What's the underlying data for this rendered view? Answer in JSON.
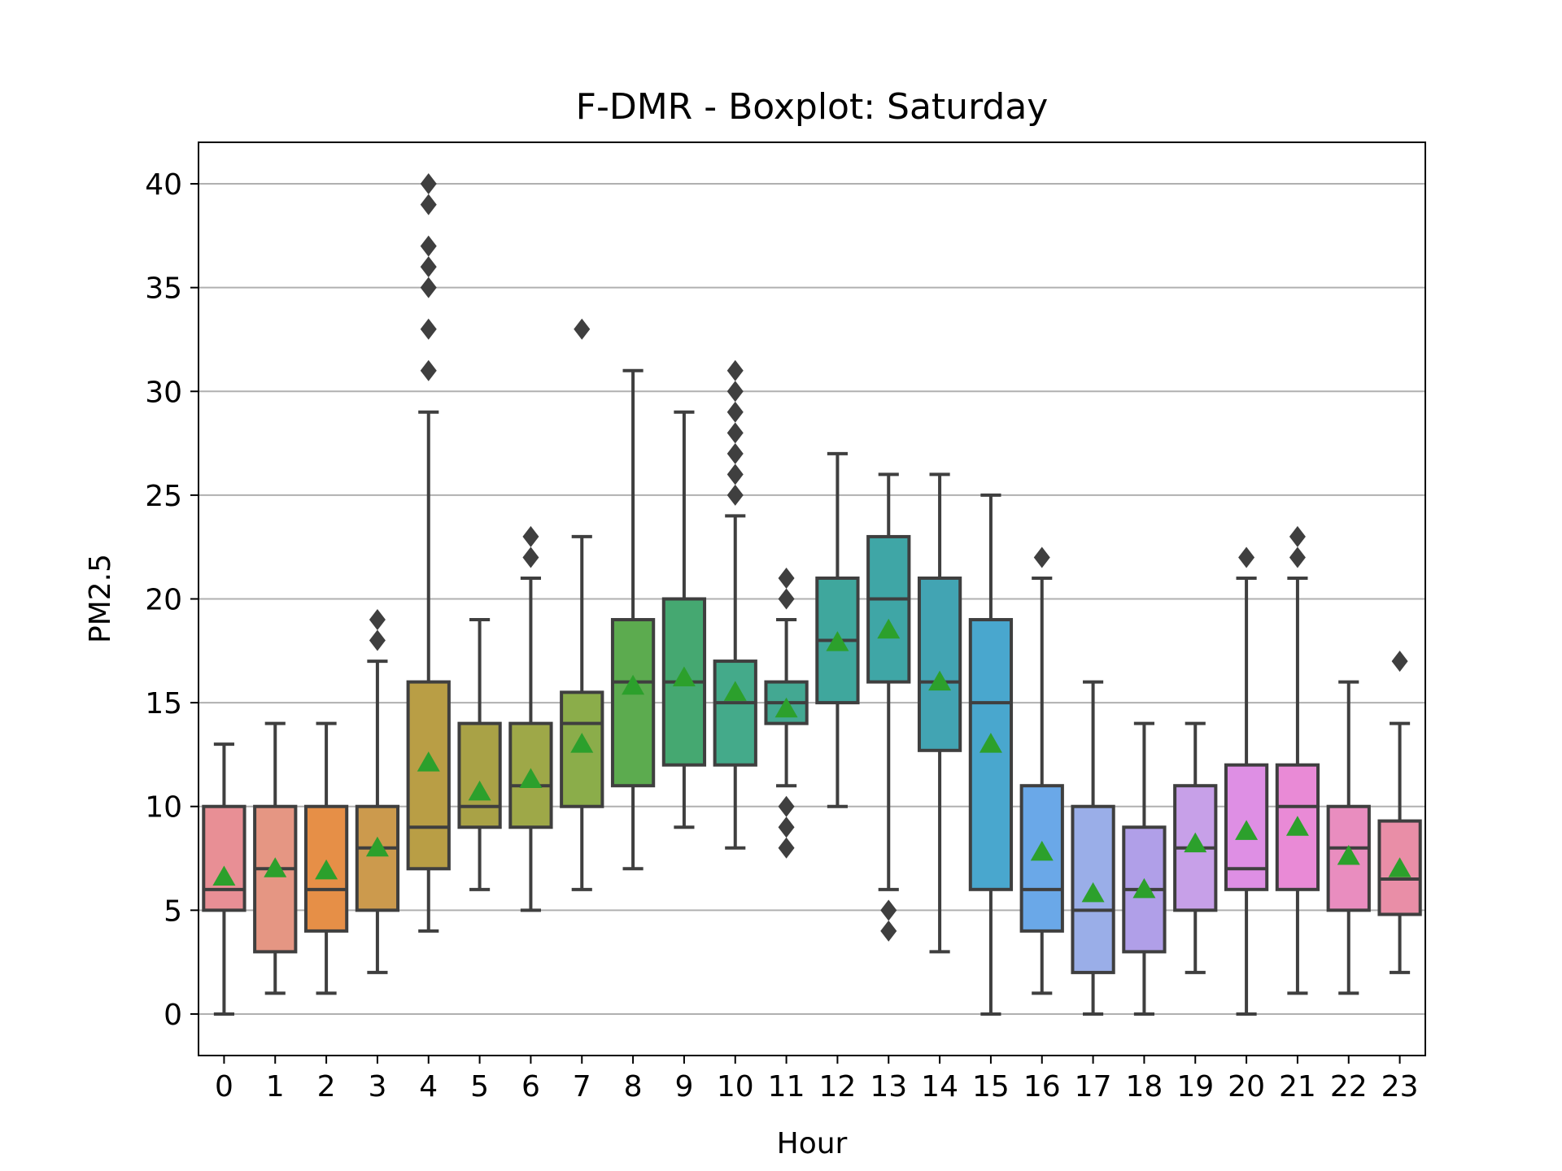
{
  "chart_data": {
    "type": "boxplot",
    "title": "F-DMR - Boxplot: Saturday",
    "xlabel": "Hour",
    "ylabel": "PM2.5",
    "ylim": [
      -2,
      42
    ],
    "yticks": [
      0,
      5,
      10,
      15,
      20,
      25,
      30,
      35,
      40
    ],
    "ytick_labels": [
      "0",
      "5",
      "10",
      "15",
      "20",
      "25",
      "30",
      "35",
      "40"
    ],
    "grid": "y",
    "categories": [
      "0",
      "1",
      "2",
      "3",
      "4",
      "5",
      "6",
      "7",
      "8",
      "9",
      "10",
      "11",
      "12",
      "13",
      "14",
      "15",
      "16",
      "17",
      "18",
      "19",
      "20",
      "21",
      "22",
      "23"
    ],
    "boxes": [
      {
        "whislo": 0,
        "q1": 5,
        "med": 6,
        "q3": 10,
        "whishi": 13,
        "mean": 6.6,
        "fliers": [],
        "color": "#e88f95"
      },
      {
        "whislo": 1,
        "q1": 3,
        "med": 7,
        "q3": 10,
        "whishi": 14,
        "mean": 7.0,
        "fliers": [],
        "color": "#e59683"
      },
      {
        "whislo": 1,
        "q1": 4,
        "med": 6,
        "q3": 10,
        "whishi": 14,
        "mean": 6.9,
        "fliers": [],
        "color": "#e68f47"
      },
      {
        "whislo": 2,
        "q1": 5,
        "med": 8,
        "q3": 10,
        "whishi": 17,
        "mean": 8.0,
        "fliers": [
          18,
          19
        ],
        "color": "#cc9a4d"
      },
      {
        "whislo": 4,
        "q1": 7,
        "med": 9,
        "q3": 16,
        "whishi": 29,
        "mean": 12.1,
        "fliers": [
          31,
          33,
          35,
          36,
          37,
          39,
          40
        ],
        "color": "#b99e45"
      },
      {
        "whislo": 6,
        "q1": 9,
        "med": 10,
        "q3": 14,
        "whishi": 19,
        "mean": 10.7,
        "fliers": [],
        "color": "#a9a246"
      },
      {
        "whislo": 5,
        "q1": 9,
        "med": 11,
        "q3": 14,
        "whishi": 21,
        "mean": 11.3,
        "fliers": [
          22,
          23
        ],
        "color": "#9ea848"
      },
      {
        "whislo": 6,
        "q1": 10,
        "med": 14,
        "q3": 15.5,
        "whishi": 23,
        "mean": 13.0,
        "fliers": [
          33
        ],
        "color": "#8bad4a"
      },
      {
        "whislo": 7,
        "q1": 11,
        "med": 16,
        "q3": 19,
        "whishi": 31,
        "mean": 15.8,
        "fliers": [],
        "color": "#5cab4f"
      },
      {
        "whislo": 9,
        "q1": 12,
        "med": 16,
        "q3": 20,
        "whishi": 29,
        "mean": 16.2,
        "fliers": [],
        "color": "#45a871"
      },
      {
        "whislo": 8,
        "q1": 12,
        "med": 15,
        "q3": 17,
        "whishi": 24,
        "mean": 15.5,
        "fliers": [
          25,
          26,
          27,
          28,
          29,
          30,
          31
        ],
        "color": "#44aa8a"
      },
      {
        "whislo": 11,
        "q1": 14,
        "med": 15,
        "q3": 16,
        "whishi": 19,
        "mean": 14.7,
        "fliers": [
          8,
          9,
          10,
          20,
          21
        ],
        "color": "#43a892"
      },
      {
        "whislo": 10,
        "q1": 15,
        "med": 18,
        "q3": 21,
        "whishi": 27,
        "mean": 17.9,
        "fliers": [],
        "color": "#3fa79d"
      },
      {
        "whislo": 6,
        "q1": 16,
        "med": 20,
        "q3": 23,
        "whishi": 26,
        "mean": 18.5,
        "fliers": [
          4,
          5
        ],
        "color": "#3fa6a6"
      },
      {
        "whislo": 3,
        "q1": 12.7,
        "med": 16,
        "q3": 21,
        "whishi": 26,
        "mean": 16.0,
        "fliers": [],
        "color": "#42a4b3"
      },
      {
        "whislo": 0,
        "q1": 6,
        "med": 15,
        "q3": 19,
        "whishi": 25,
        "mean": 13.0,
        "fliers": [],
        "color": "#49a7ce"
      },
      {
        "whislo": 1,
        "q1": 4,
        "med": 6,
        "q3": 11,
        "whishi": 21,
        "mean": 7.8,
        "fliers": [
          22
        ],
        "color": "#6aa8e8"
      },
      {
        "whislo": 0,
        "q1": 2,
        "med": 5,
        "q3": 10,
        "whishi": 16,
        "mean": 5.8,
        "fliers": [],
        "color": "#9aaee8"
      },
      {
        "whislo": 0,
        "q1": 3,
        "med": 6,
        "q3": 9,
        "whishi": 14,
        "mean": 6.0,
        "fliers": [],
        "color": "#b09fe8"
      },
      {
        "whislo": 2,
        "q1": 5,
        "med": 8,
        "q3": 11,
        "whishi": 14,
        "mean": 8.2,
        "fliers": [],
        "color": "#c7a0e8"
      },
      {
        "whislo": 0,
        "q1": 6,
        "med": 7,
        "q3": 12,
        "whishi": 21,
        "mean": 8.8,
        "fliers": [
          22
        ],
        "color": "#de8fe4"
      },
      {
        "whislo": 1,
        "q1": 6,
        "med": 10,
        "q3": 12,
        "whishi": 21,
        "mean": 9.0,
        "fliers": [
          22,
          23
        ],
        "color": "#e98ad6"
      },
      {
        "whislo": 1,
        "q1": 5,
        "med": 8,
        "q3": 10,
        "whishi": 16,
        "mean": 7.6,
        "fliers": [],
        "color": "#e98dbf"
      },
      {
        "whislo": 2,
        "q1": 4.8,
        "med": 6.5,
        "q3": 9.3,
        "whishi": 14,
        "mean": 7.0,
        "fliers": [
          17
        ],
        "color": "#e98ea7"
      }
    ],
    "box_edge_color": "#3f3f3f",
    "mean_marker_color": "#2ca02c",
    "grid_color": "#b0b0b0"
  }
}
